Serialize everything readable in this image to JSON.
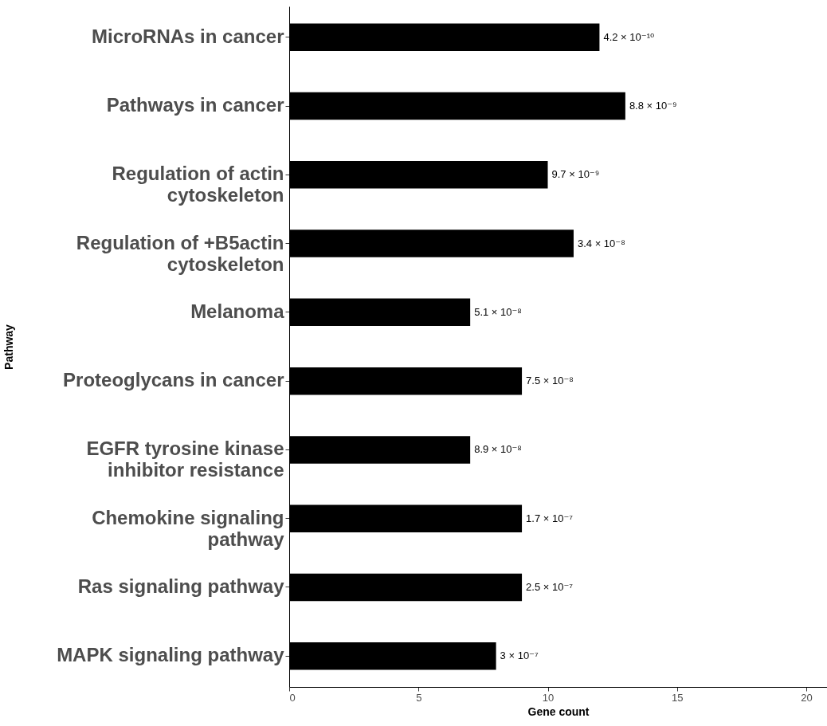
{
  "chart_data": {
    "type": "bar",
    "orientation": "horizontal",
    "xlabel": "Gene count",
    "ylabel": "Pathway",
    "categories": [
      "MicroRNAs in cancer",
      "Pathways in cancer",
      "Regulation of actin cytoskeleton",
      "Regulation of +B5actin cytoskeleton",
      "Melanoma",
      "Proteoglycans in cancer",
      "EGFR tyrosine kinase inhibitor resistance",
      "Chemokine signaling pathway",
      "Ras signaling pathway",
      "MAPK signaling pathway"
    ],
    "values": [
      12,
      13,
      10,
      11,
      7,
      9,
      7,
      9,
      9,
      8
    ],
    "annotations": [
      {
        "text": "4.2 × 10⁻¹⁰",
        "x": 12,
        "y": "MicroRNAs in cancer"
      },
      {
        "text": "8.8 × 10⁻⁹",
        "x": 13,
        "y": "Pathways in cancer"
      },
      {
        "text": "9.7 × 10⁻⁹",
        "x": 10,
        "y": "Regulation of actin cytoskeleton"
      },
      {
        "text": "3.4 × 10⁻⁸",
        "x": 11,
        "y": "Regulation of +B5actin cytoskeleton"
      },
      {
        "text": "5.1 × 10⁻⁸",
        "x": 7,
        "y": "Melanoma"
      },
      {
        "text": "7.5 × 10⁻⁸",
        "x": 9,
        "y": "Proteoglycans in cancer"
      },
      {
        "text": "8.9 × 10⁻⁸",
        "x": 7,
        "y": "EGFR tyrosine kinase inhibitor resistance"
      },
      {
        "text": "1.7 × 10⁻⁷",
        "x": 9,
        "y": "Chemokine signaling pathway"
      },
      {
        "text": "2.5 × 10⁻⁷",
        "x": 9,
        "y": "Ras signaling pathway"
      },
      {
        "text": "3 × 10⁻⁷",
        "x": 8,
        "y": "MAPK signaling pathway"
      }
    ],
    "color": "#000000",
    "xlim": [
      0,
      20.8
    ],
    "xticks": [
      0,
      5,
      10,
      15,
      20
    ],
    "grid": false
  }
}
